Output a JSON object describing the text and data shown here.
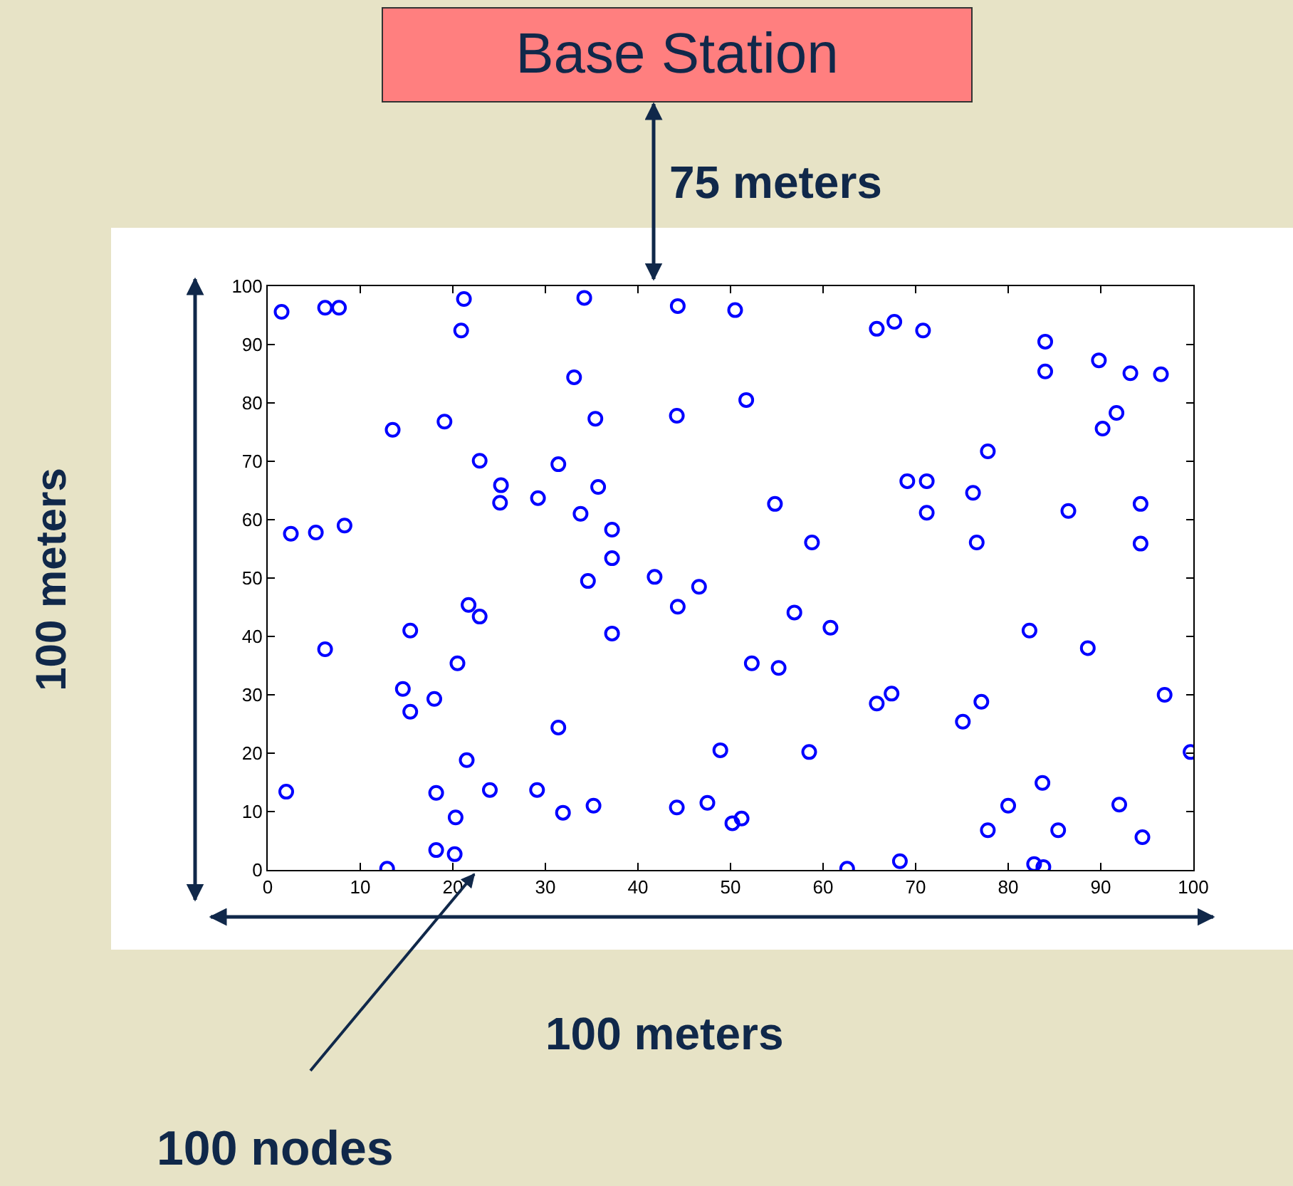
{
  "chart_data": {
    "type": "scatter",
    "color": "#0000ff",
    "marker": "circle",
    "grid": false,
    "xlim": [
      0,
      100
    ],
    "ylim": [
      0,
      100
    ],
    "xticks": [
      0,
      10,
      20,
      30,
      40,
      50,
      60,
      70,
      80,
      90,
      100
    ],
    "yticks": [
      0,
      10,
      20,
      30,
      40,
      50,
      60,
      70,
      80,
      90,
      100
    ],
    "annotations": [
      "Base Station",
      "75 meters",
      "100 meters",
      "100 meters",
      "100 nodes"
    ],
    "x": [
      1.5,
      6.2,
      7.7,
      21.2,
      20.9,
      34.2,
      44.3,
      50.5,
      65.8,
      67.7,
      70.8,
      84,
      84,
      89.8,
      93.2,
      96.5,
      91.7,
      90.2,
      77.8,
      33.1,
      51.7,
      44.2,
      35.4,
      19.1,
      13.5,
      22.9,
      31.4,
      69.1,
      71.2,
      35.7,
      25.2,
      25.1,
      29.2,
      54.8,
      76.2,
      71.2,
      86.5,
      94.3,
      33.8,
      37.2,
      2.5,
      5.2,
      8.3,
      58.8,
      76.6,
      94.3,
      37.2,
      34.6,
      41.8,
      46.6,
      21.7,
      22.9,
      44.3,
      56.9,
      60.8,
      82.3,
      15.4,
      37.2,
      6.2,
      88.6,
      20.5,
      52.3,
      55.2,
      14.6,
      15.4,
      18,
      65.8,
      67.4,
      77.1,
      75.1,
      96.9,
      31.4,
      58.5,
      48.9,
      99.7,
      21.5,
      2,
      18.2,
      24,
      29.1,
      35.2,
      31.9,
      20.3,
      44.2,
      47.5,
      50.2,
      51.2,
      18.2,
      20.2,
      12.9,
      62.6,
      68.3,
      77.8,
      80,
      83.7,
      85.4,
      92,
      94.5,
      82.8,
      83.8
    ],
    "values": [
      95.6,
      96.3,
      96.3,
      97.8,
      92.4,
      98,
      96.6,
      95.9,
      92.7,
      93.9,
      92.4,
      90.5,
      85.4,
      87.3,
      85.1,
      84.9,
      78.3,
      75.6,
      71.7,
      84.4,
      80.5,
      77.8,
      77.3,
      76.8,
      75.4,
      70.1,
      69.5,
      66.6,
      66.6,
      65.6,
      65.9,
      62.9,
      63.7,
      62.7,
      64.6,
      61.2,
      61.5,
      62.7,
      61,
      58.3,
      57.6,
      57.8,
      59,
      56.1,
      56.1,
      55.9,
      53.4,
      49.5,
      50.2,
      48.5,
      45.4,
      43.4,
      45.1,
      44.1,
      41.5,
      41,
      41,
      40.5,
      37.8,
      38,
      35.4,
      35.4,
      34.6,
      31,
      27.1,
      29.3,
      28.5,
      30.2,
      28.8,
      25.4,
      30,
      24.4,
      20.2,
      20.5,
      20.2,
      18.8,
      13.4,
      13.2,
      13.7,
      13.7,
      11,
      9.8,
      9,
      10.7,
      11.5,
      8,
      8.8,
      3.4,
      2.7,
      0.2,
      0.2,
      1.5,
      6.8,
      11,
      14.9,
      6.8,
      11.2,
      5.6,
      1,
      0.5
    ]
  }
}
